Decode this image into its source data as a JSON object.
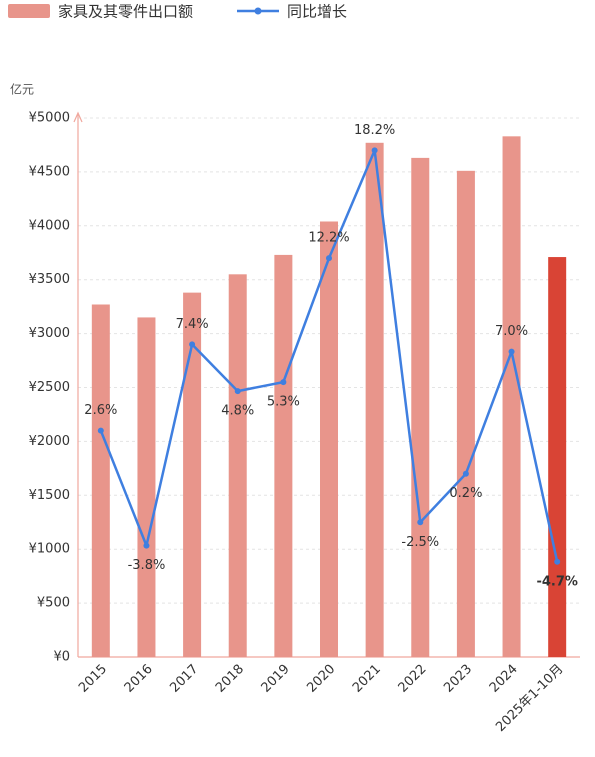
{
  "chart_data": {
    "type": "bar_line",
    "y_axis_label": "亿元",
    "categories": [
      "2015",
      "2016",
      "2017",
      "2018",
      "2019",
      "2020",
      "2021",
      "2022",
      "2023",
      "2024",
      "2025年1-10月"
    ],
    "series": [
      {
        "name": "家具及其零件出口额",
        "type": "bar",
        "color": "#e8958b",
        "colors": [
          "#e8958b",
          "#e8958b",
          "#e8958b",
          "#e8958b",
          "#e8958b",
          "#e8958b",
          "#e8958b",
          "#e8958b",
          "#e8958b",
          "#e8958b",
          "#d94435"
        ],
        "values": [
          3270,
          3150,
          3380,
          3550,
          3730,
          4040,
          4770,
          4630,
          4510,
          4830,
          3710
        ]
      },
      {
        "name": "同比增长",
        "type": "line",
        "axis": "y2",
        "color": "#3f7fe0",
        "values": [
          2.6,
          -3.8,
          7.4,
          4.8,
          5.3,
          12.2,
          18.2,
          -2.5,
          0.2,
          7.0,
          -4.7
        ],
        "value_labels": [
          "2.6%",
          "-3.8%",
          "7.4%",
          "4.8%",
          "5.3%",
          "12.2%",
          "18.2%",
          "-2.5%",
          "0.2%",
          "7.0%",
          "-4.7%"
        ]
      }
    ],
    "ylim": [
      0,
      5000
    ],
    "yticks": [
      {
        "value": 0,
        "label": "¥0"
      },
      {
        "value": 500,
        "label": "¥500"
      },
      {
        "value": 1000,
        "label": "¥1000"
      },
      {
        "value": 1500,
        "label": "¥1500"
      },
      {
        "value": 2000,
        "label": "¥2000"
      },
      {
        "value": 2500,
        "label": "¥2500"
      },
      {
        "value": 3000,
        "label": "¥3000"
      },
      {
        "value": 3500,
        "label": "¥3500"
      },
      {
        "value": 4000,
        "label": "¥4000"
      },
      {
        "value": 4500,
        "label": "¥4500"
      },
      {
        "value": 5000,
        "label": "¥5000"
      }
    ],
    "y2lim": [
      -10,
      20
    ],
    "grid": true
  }
}
